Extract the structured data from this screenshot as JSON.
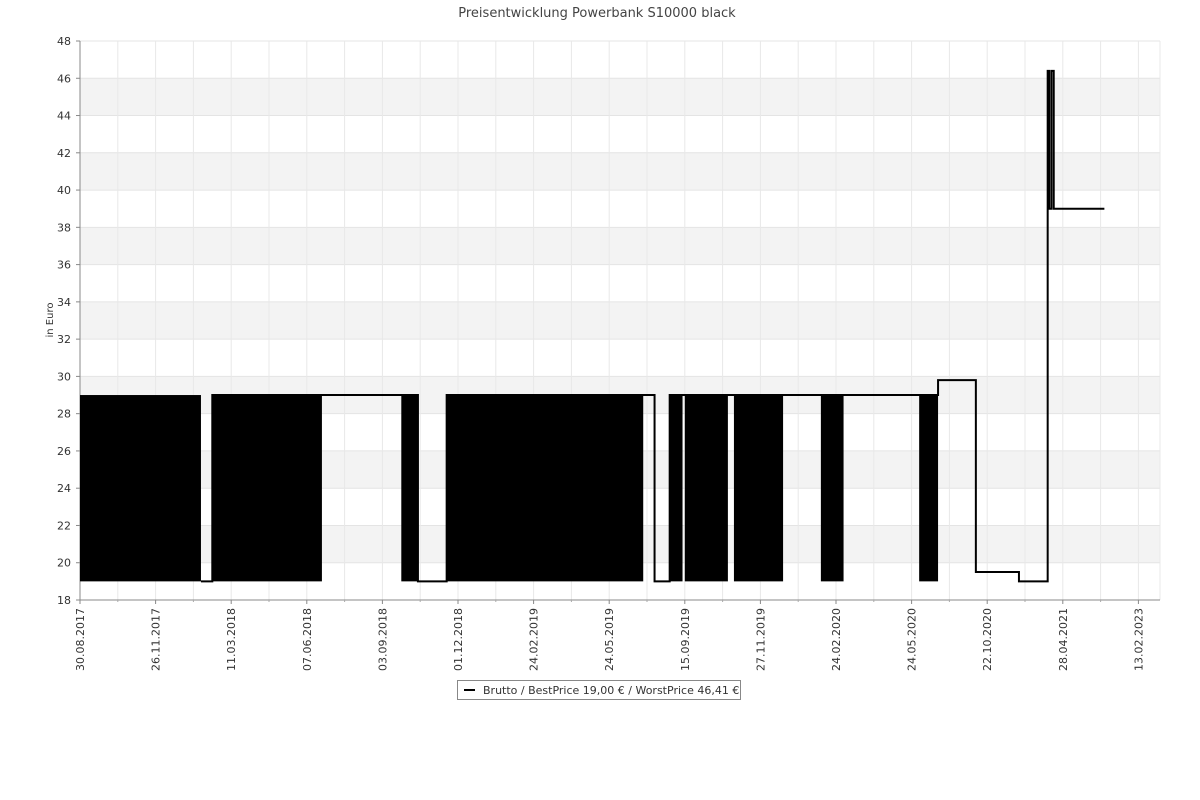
{
  "chart_data": {
    "type": "line",
    "title": "Preisentwicklung Powerbank S10000 black",
    "ylabel": "in Euro",
    "xlabel": "",
    "ylim": [
      18,
      48
    ],
    "y_ticks": [
      18,
      20,
      22,
      24,
      26,
      28,
      30,
      32,
      34,
      36,
      38,
      40,
      42,
      44,
      46,
      48
    ],
    "x_tick_labels": [
      "30.08.2017",
      "26.11.2017",
      "11.03.2018",
      "07.06.2018",
      "03.09.2018",
      "01.12.2018",
      "24.02.2019",
      "24.05.2019",
      "15.09.2019",
      "27.11.2019",
      "24.02.2020",
      "24.05.2020",
      "22.10.2020",
      "28.04.2021",
      "13.02.2023"
    ],
    "grid": true,
    "legend_position": "bottom-center",
    "series": [
      {
        "name": "Brutto / BestPrice  19,00 € / WorstPrice  46,41 €",
        "color": "#000000",
        "oscillating_segments": [
          {
            "from_tick": 0,
            "to_tick": 1.6,
            "low": 19,
            "high": 29
          },
          {
            "from_tick": 1.75,
            "to_tick": 3.2,
            "low": 19,
            "high": 29
          },
          {
            "from_tick": 4.25,
            "to_tick": 4.47,
            "low": 19,
            "high": 29
          },
          {
            "from_tick": 4.85,
            "to_tick": 7.45,
            "low": 19,
            "high": 29
          },
          {
            "from_tick": 7.8,
            "to_tick": 7.97,
            "low": 19,
            "high": 29
          },
          {
            "from_tick": 8.0,
            "to_tick": 8.57,
            "low": 19,
            "high": 29
          },
          {
            "from_tick": 8.65,
            "to_tick": 9.3,
            "low": 19,
            "high": 29
          },
          {
            "from_tick": 9.8,
            "to_tick": 10.1,
            "low": 19,
            "high": 29
          },
          {
            "from_tick": 11.1,
            "to_tick": 11.35,
            "low": 19,
            "high": 29
          }
        ],
        "steps": [
          {
            "tick": 1.6,
            "value": 19
          },
          {
            "tick": 1.75,
            "value": 29
          },
          {
            "tick": 3.2,
            "value": 29
          },
          {
            "tick": 4.25,
            "value": 29
          },
          {
            "tick": 4.47,
            "value": 19
          },
          {
            "tick": 4.85,
            "value": 29
          },
          {
            "tick": 7.45,
            "value": 29
          },
          {
            "tick": 7.6,
            "value": 19
          },
          {
            "tick": 7.8,
            "value": 29
          },
          {
            "tick": 9.3,
            "value": 29
          },
          {
            "tick": 9.8,
            "value": 29
          },
          {
            "tick": 10.1,
            "value": 29
          },
          {
            "tick": 11.1,
            "value": 29
          },
          {
            "tick": 11.35,
            "value": 29.8
          },
          {
            "tick": 11.85,
            "value": 19.5
          },
          {
            "tick": 12.42,
            "value": 19
          },
          {
            "tick": 12.8,
            "value": 19
          },
          {
            "tick": 12.8,
            "value": 46.4
          },
          {
            "tick": 12.82,
            "value": 39
          },
          {
            "tick": 12.85,
            "value": 46.4
          },
          {
            "tick": 12.88,
            "value": 39
          },
          {
            "tick": 13.55,
            "value": 39
          }
        ]
      }
    ]
  }
}
